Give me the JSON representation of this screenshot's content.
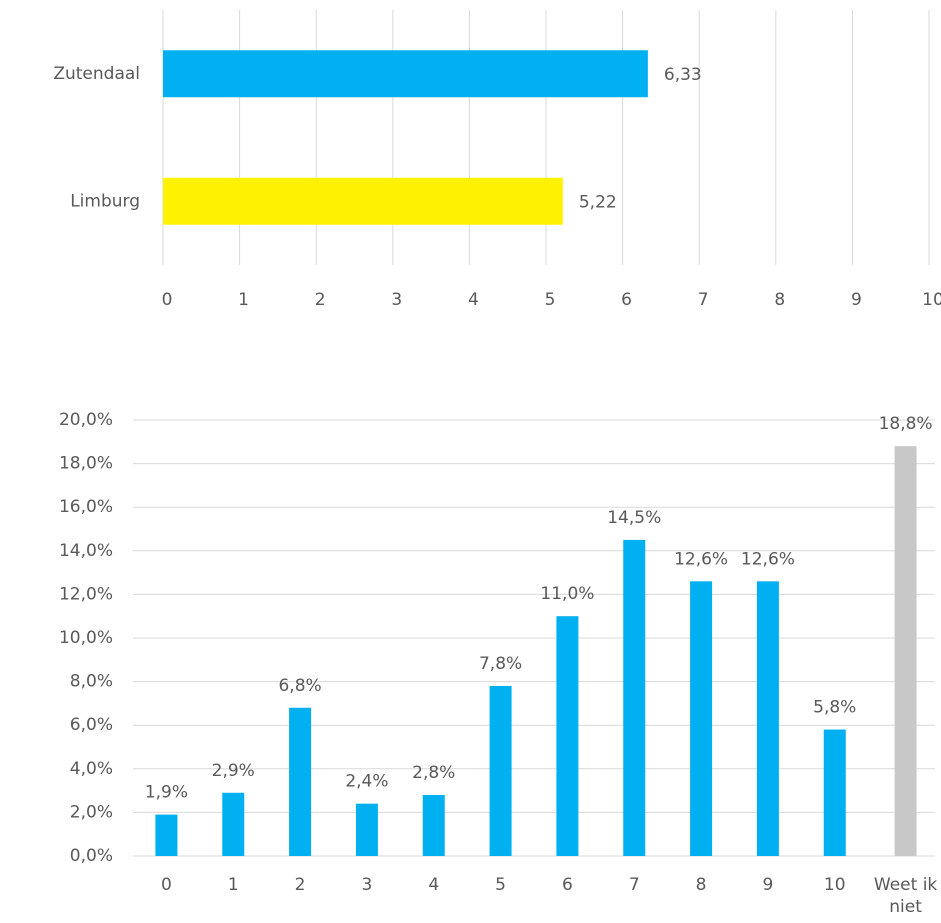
{
  "chart_data": [
    {
      "type": "hbar",
      "categories": [
        "Zutendaal",
        "Limburg"
      ],
      "values": [
        6.33,
        5.22
      ],
      "value_labels": [
        "6,33",
        "5,22"
      ],
      "colors": [
        "#00b0f0",
        "#fff200"
      ],
      "xlim": [
        0,
        10
      ],
      "xticks": [
        0,
        1,
        2,
        3,
        4,
        5,
        6,
        7,
        8,
        9,
        10
      ],
      "grid": true
    },
    {
      "type": "bar",
      "categories": [
        "0",
        "1",
        "2",
        "3",
        "4",
        "5",
        "6",
        "7",
        "8",
        "9",
        "10",
        "Weet ik niet"
      ],
      "values": [
        1.9,
        2.9,
        6.8,
        2.4,
        2.8,
        7.8,
        11.0,
        14.5,
        12.6,
        12.6,
        5.8,
        18.8
      ],
      "value_labels": [
        "1,9%",
        "2,9%",
        "6,8%",
        "2,4%",
        "2,8%",
        "7,8%",
        "11,0%",
        "14,5%",
        "12,6%",
        "12,6%",
        "5,8%",
        "18,8%"
      ],
      "colors": [
        "#00b0f0",
        "#00b0f0",
        "#00b0f0",
        "#00b0f0",
        "#00b0f0",
        "#00b0f0",
        "#00b0f0",
        "#00b0f0",
        "#00b0f0",
        "#00b0f0",
        "#00b0f0",
        "#c8c8c8"
      ],
      "ylim": [
        0,
        20
      ],
      "yticks": [
        {
          "value": 0,
          "label": "0,0%"
        },
        {
          "value": 2,
          "label": "2,0%"
        },
        {
          "value": 4,
          "label": "4,0%"
        },
        {
          "value": 6,
          "label": "6,0%"
        },
        {
          "value": 8,
          "label": "8,0%"
        },
        {
          "value": 10,
          "label": "10,0%"
        },
        {
          "value": 12,
          "label": "12,0%"
        },
        {
          "value": 14,
          "label": "14,0%"
        },
        {
          "value": 16,
          "label": "16,0%"
        },
        {
          "value": 18,
          "label": "18,0%"
        },
        {
          "value": 20,
          "label": "20,0%"
        }
      ],
      "grid": true
    }
  ]
}
